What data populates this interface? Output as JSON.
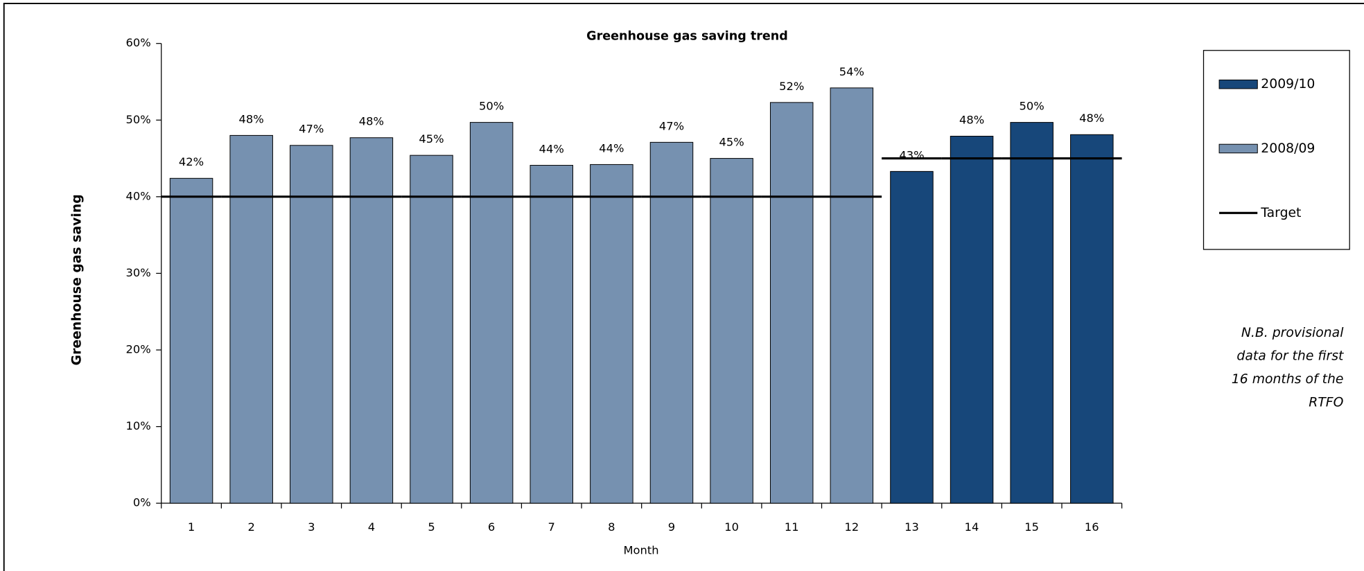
{
  "chart_data": {
    "type": "bar",
    "title": "Greenhouse gas saving trend",
    "x_label": "Month",
    "y_label": "Greenhouse gas saving",
    "categories": [
      "1",
      "2",
      "3",
      "4",
      "5",
      "6",
      "7",
      "8",
      "9",
      "10",
      "11",
      "12",
      "13",
      "14",
      "15",
      "16"
    ],
    "series": [
      {
        "name": "2009/10",
        "color": "#17477a",
        "values": [
          null,
          null,
          null,
          null,
          null,
          null,
          null,
          null,
          null,
          null,
          null,
          null,
          43.3,
          47.9,
          49.7,
          48.1
        ],
        "value_labels": [
          null,
          null,
          null,
          null,
          null,
          null,
          null,
          null,
          null,
          null,
          null,
          null,
          "43%",
          "48%",
          "50%",
          "48%"
        ]
      },
      {
        "name": "2008/09",
        "color": "#7691b0",
        "values": [
          42.4,
          48,
          46.7,
          47.7,
          45.4,
          49.7,
          44.1,
          44.2,
          47.1,
          45,
          52.3,
          54.2,
          null,
          null,
          null,
          null
        ],
        "value_labels": [
          "42%",
          "48%",
          "47%",
          "48%",
          "45%",
          "50%",
          "44%",
          "44%",
          "47%",
          "45%",
          "52%",
          "54%",
          null,
          null,
          null,
          null
        ]
      },
      {
        "name": "Target",
        "type": "line",
        "color": "#000000",
        "values": [
          40,
          40,
          40,
          40,
          40,
          40,
          40,
          40,
          40,
          40,
          40,
          40,
          45,
          45,
          45,
          45
        ]
      }
    ],
    "ylim": [
      0,
      60
    ],
    "yticks": [
      {
        "value": 0,
        "label": "0%"
      },
      {
        "value": 10,
        "label": "10%"
      },
      {
        "value": 20,
        "label": "20%"
      },
      {
        "value": 30,
        "label": "30%"
      },
      {
        "value": 40,
        "label": "40%"
      },
      {
        "value": 50,
        "label": "50%"
      },
      {
        "value": 60,
        "label": "60%"
      }
    ],
    "grid": false,
    "legend": "right",
    "annotation": [
      "N.B. provisional",
      "data for the first",
      "16 months of the",
      "RTFO"
    ]
  }
}
